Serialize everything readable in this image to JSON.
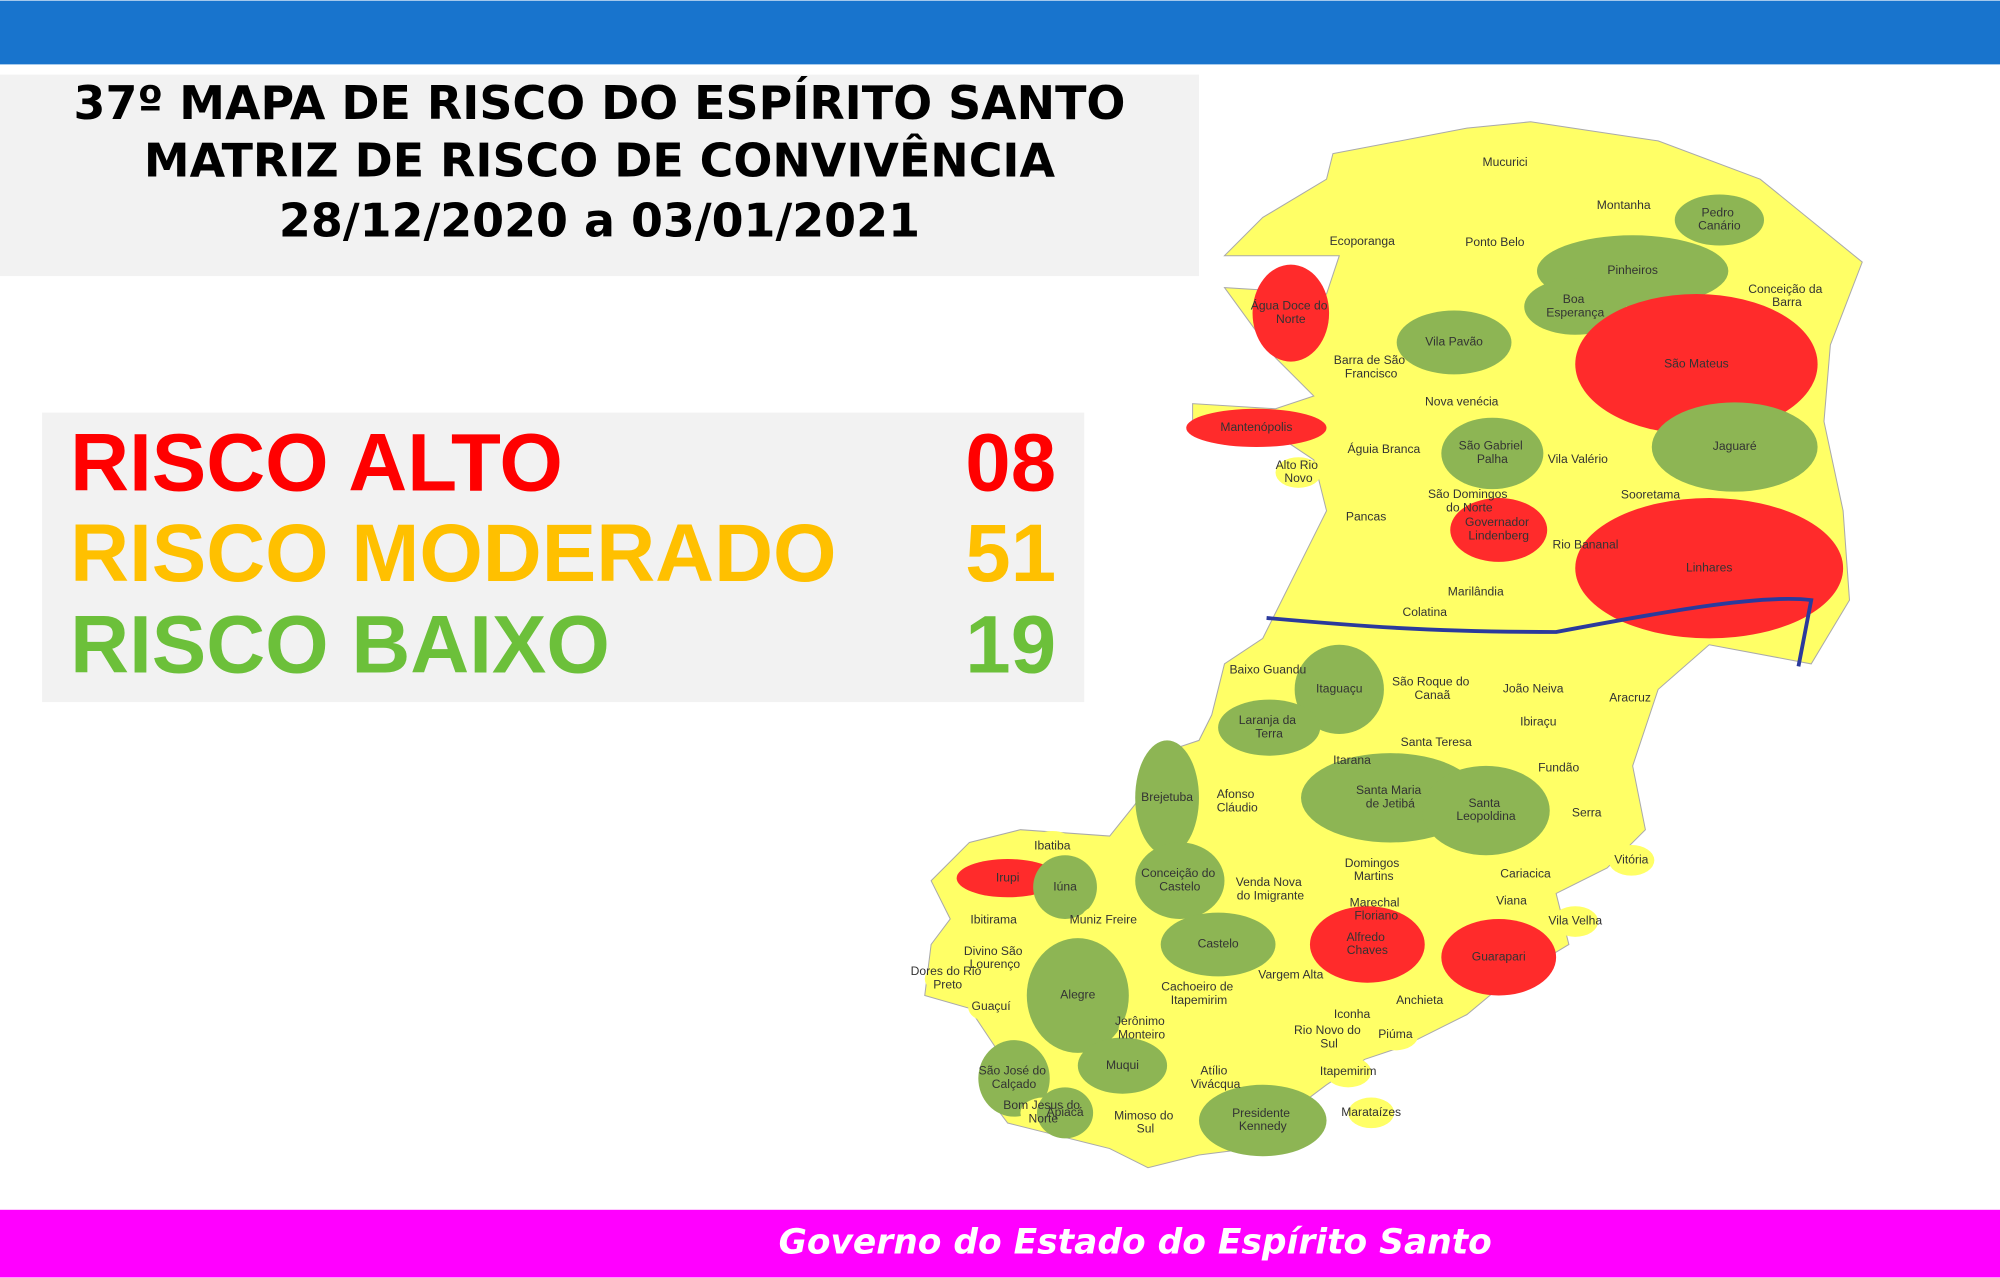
{
  "header": {
    "title_lines": [
      "37º MAPA DE RISCO DO ESPÍRITO SANTO",
      "MATRIZ DE RISCO DE CONVIVÊNCIA",
      "28/12/2020 a 03/01/2021"
    ]
  },
  "legend": [
    {
      "label": "RISCO ALTO",
      "count": "08",
      "color": "#ff0000"
    },
    {
      "label": "RISCO MODERADO",
      "count": "51",
      "color": "#ffc000"
    },
    {
      "label": "RISCO BAIXO",
      "count": "19",
      "color": "#6cc03a"
    }
  ],
  "map": {
    "base_color": "#ffff66",
    "municipalities": [
      {
        "label": "Mucurici",
        "color": "#ffff66"
      },
      {
        "label": "Montanha",
        "color": "#ffff66"
      },
      {
        "label": "Pedro Canário",
        "color": "#8db554"
      },
      {
        "label": "Ecoporanga",
        "color": "#ffff66"
      },
      {
        "label": "Ponto Belo",
        "color": "#ffff66"
      },
      {
        "label": "Pinheiros",
        "color": "#8db554"
      },
      {
        "label": "Conceição da Barra",
        "color": "#ffff66"
      },
      {
        "label": "Água Doce do Norte",
        "color": "#ff2b2b"
      },
      {
        "label": "Boa Esperança",
        "color": "#8db554"
      },
      {
        "label": "Vila Pavão",
        "color": "#8db554"
      },
      {
        "label": "Barra de São Francisco",
        "color": "#ffff66"
      },
      {
        "label": "São Mateus",
        "color": "#ff2b2b"
      },
      {
        "label": "Nova venécia",
        "color": "#ffff66"
      },
      {
        "label": "Mantenópolis",
        "color": "#ff2b2b"
      },
      {
        "label": "Águia Branca",
        "color": "#ffff66"
      },
      {
        "label": "São Gabriel Palha",
        "color": "#8db554"
      },
      {
        "label": "Vila Valério",
        "color": "#ffff66"
      },
      {
        "label": "Jaguaré",
        "color": "#8db554"
      },
      {
        "label": "Alto Rio Novo",
        "color": "#ffff66"
      },
      {
        "label": "Sooretama",
        "color": "#ffff66"
      },
      {
        "label": "São Domingos do Norte",
        "color": "#ffff66"
      },
      {
        "label": "Pancas",
        "color": "#ffff66"
      },
      {
        "label": "Governador Lindenberg",
        "color": "#ff2b2b"
      },
      {
        "label": "Rio Bananal",
        "color": "#ffff66"
      },
      {
        "label": "Linhares",
        "color": "#ff2b2b"
      },
      {
        "label": "Marilândia",
        "color": "#ffff66"
      },
      {
        "label": "Colatina",
        "color": "#ffff66"
      },
      {
        "label": "Baixo Guandu",
        "color": "#ffff66"
      },
      {
        "label": "Itaguaçu",
        "color": "#8db554"
      },
      {
        "label": "São Roque do Canaã",
        "color": "#ffff66"
      },
      {
        "label": "João Neiva",
        "color": "#ffff66"
      },
      {
        "label": "Aracruz",
        "color": "#ffff66"
      },
      {
        "label": "Ibiraçu",
        "color": "#ffff66"
      },
      {
        "label": "Laranja da Terra",
        "color": "#8db554"
      },
      {
        "label": "Santa Teresa",
        "color": "#ffff66"
      },
      {
        "label": "Itarana",
        "color": "#ffff66"
      },
      {
        "label": "Fundão",
        "color": "#ffff66"
      },
      {
        "label": "Afonso Cláudio",
        "color": "#ffff66"
      },
      {
        "label": "Santa Maria de Jetibá",
        "color": "#8db554"
      },
      {
        "label": "Santa Leopoldina",
        "color": "#8db554"
      },
      {
        "label": "Serra",
        "color": "#ffff66"
      },
      {
        "label": "Brejetuba",
        "color": "#8db554"
      },
      {
        "label": "Ibatiba",
        "color": "#ffff66"
      },
      {
        "label": "Domingos Martins",
        "color": "#ffff66"
      },
      {
        "label": "Vitória",
        "color": "#ffff66"
      },
      {
        "label": "Cariacica",
        "color": "#ffff66"
      },
      {
        "label": "Irupi",
        "color": "#ff2b2b"
      },
      {
        "label": "Iúna",
        "color": "#8db554"
      },
      {
        "label": "Conceição do Castelo",
        "color": "#8db554"
      },
      {
        "label": "Venda Nova do Imigrante",
        "color": "#ffff66"
      },
      {
        "label": "Viana",
        "color": "#ffff66"
      },
      {
        "label": "Marechal Floriano",
        "color": "#ffff66"
      },
      {
        "label": "Vila Velha",
        "color": "#ffff66"
      },
      {
        "label": "Ibitirama",
        "color": "#ffff66"
      },
      {
        "label": "Muniz Freire",
        "color": "#ffff66"
      },
      {
        "label": "Alfredo Chaves",
        "color": "#ff2b2b"
      },
      {
        "label": "Guarapari",
        "color": "#ff2b2b"
      },
      {
        "label": "Castelo",
        "color": "#8db554"
      },
      {
        "label": "Divino São Lourenço",
        "color": "#ffff66"
      },
      {
        "label": "Dores do Rio Preto",
        "color": "#ffff66"
      },
      {
        "label": "Alegre",
        "color": "#8db554"
      },
      {
        "label": "Cachoeiro de Itapemirim",
        "color": "#ffff66"
      },
      {
        "label": "Vargem Alta",
        "color": "#ffff66"
      },
      {
        "label": "Anchieta",
        "color": "#ffff66"
      },
      {
        "label": "Guaçuí",
        "color": "#ffff66"
      },
      {
        "label": "Iconha",
        "color": "#ffff66"
      },
      {
        "label": "Jerônimo Monteiro",
        "color": "#ffff66"
      },
      {
        "label": "Rio Novo do Sul",
        "color": "#ffff66"
      },
      {
        "label": "Piúma",
        "color": "#ffff66"
      },
      {
        "label": "São José do Calçado",
        "color": "#8db554"
      },
      {
        "label": "Muqui",
        "color": "#8db554"
      },
      {
        "label": "Atílio Vivácqua",
        "color": "#ffff66"
      },
      {
        "label": "Itapemirim",
        "color": "#ffff66"
      },
      {
        "label": "Bom Jesus do Norte",
        "color": "#ffff66"
      },
      {
        "label": "Apiacá",
        "color": "#8db554"
      },
      {
        "label": "Mimoso do Sul",
        "color": "#ffff66"
      },
      {
        "label": "Presidente Kennedy",
        "color": "#8db554"
      },
      {
        "label": "Marataízes",
        "color": "#ffff66"
      }
    ]
  },
  "footer": {
    "text": "Governo do Estado do Espírito Santo"
  }
}
